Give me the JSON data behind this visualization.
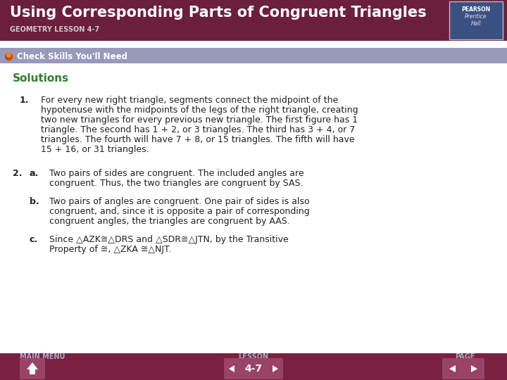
{
  "title": "Using Corresponding Parts of Congruent Triangles",
  "subtitle": "GEOMETRY LESSON 4-7",
  "header_bg": "#6b1f3a",
  "header_text_color": "#ffffff",
  "subtitle_color": "#cccccc",
  "skills_bar_color": "#9999bb",
  "skills_text": "Check Skills You'll Need",
  "body_bg": "#ffffff",
  "solutions_color": "#2e7d32",
  "solutions_text": "Solutions",
  "footer_bg": "#7a2040",
  "footer_label_color": "#aaaacc",
  "footer_btn_color": "#994466",
  "item1_bold": "1.",
  "item1_text": "For every new right triangle, segments connect the midpoint of the\nhypotenuse with the midpoints of the legs of the right triangle, creating\ntwo new triangles for every previous new triangle. The first figure has 1\ntriangle. The second has 1 + 2, or 3 triangles. The third has 3 + 4, or 7\ntriangles. The fourth will have 7 + 8, or 15 triangles. The fifth will have\n15 + 16, or 31 triangles.",
  "item2_bold": "2.",
  "item2a_bold": "a.",
  "item2a_text": "Two pairs of sides are congruent. The included angles are\ncongruent. Thus, the two triangles are congruent by SAS.",
  "item2b_bold": "b.",
  "item2b_text": "Two pairs of angles are congruent. One pair of sides is also\ncongruent, and, since it is opposite a pair of corresponding\ncongruent angles, the triangles are congruent by AAS.",
  "item2c_bold": "c.",
  "item2c_text1": "Since △AZK≅△DRS and △SDR≅△JTN, by the Transitive",
  "item2c_text2": "Property of ≅, △ZKA ≅△NJT.",
  "page_num": "4-7"
}
